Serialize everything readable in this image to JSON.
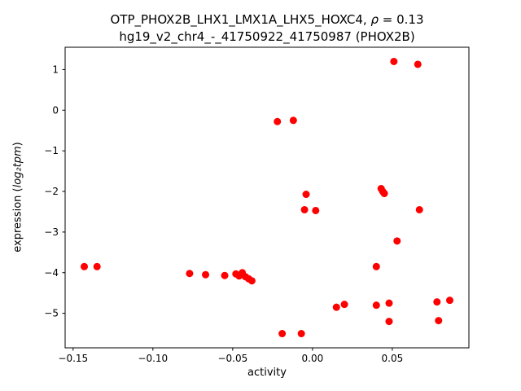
{
  "title": {
    "line1_prefix": "OTP_PHOX2B_LHX1_LMX1A_LHX5_HOXC4, ",
    "line1_rho": "ρ",
    "line1_suffix": " = 0.13",
    "line2": "hg19_v2_chr4_-_41750922_41750987 (PHOX2B)"
  },
  "axes": {
    "xlabel": "activity",
    "ylabel_prefix": "expression (",
    "ylabel_math": "log₂tpm",
    "ylabel_suffix": ")"
  },
  "chart_data": {
    "type": "scatter",
    "title": "OTP_PHOX2B_LHX1_LMX1A_LHX5_HOXC4, ρ = 0.13 / hg19_v2_chr4_-_41750922_41750987 (PHOX2B)",
    "xlabel": "activity",
    "ylabel": "expression (log2 tpm)",
    "marker_color": "#ff0000",
    "marker_radius": 4.5,
    "grid": false,
    "legend": null,
    "xlim": [
      -0.155,
      0.098
    ],
    "ylim": [
      -5.85,
      1.55
    ],
    "x_ticks": {
      "values": [
        -0.15,
        -0.1,
        -0.05,
        0.0,
        0.05
      ],
      "labels": [
        "−0.15",
        "−0.10",
        "−0.05",
        "0.00",
        "0.05"
      ]
    },
    "y_ticks": {
      "values": [
        1,
        0,
        -1,
        -2,
        -3,
        -4,
        -5
      ],
      "labels": [
        "1",
        "0",
        "−1",
        "−2",
        "−3",
        "−4",
        "−5"
      ]
    },
    "points": [
      [
        -0.143,
        -3.85
      ],
      [
        -0.135,
        -3.85
      ],
      [
        -0.077,
        -4.02
      ],
      [
        -0.067,
        -4.05
      ],
      [
        -0.055,
        -4.07
      ],
      [
        -0.048,
        -4.03
      ],
      [
        -0.046,
        -4.08
      ],
      [
        -0.044,
        -4.0
      ],
      [
        -0.042,
        -4.1
      ],
      [
        -0.04,
        -4.15
      ],
      [
        -0.038,
        -4.2
      ],
      [
        -0.022,
        -0.28
      ],
      [
        -0.012,
        -0.25
      ],
      [
        -0.019,
        -5.5
      ],
      [
        -0.007,
        -5.5
      ],
      [
        -0.004,
        -2.07
      ],
      [
        -0.005,
        -2.45
      ],
      [
        0.002,
        -2.47
      ],
      [
        0.015,
        -4.85
      ],
      [
        0.02,
        -4.78
      ],
      [
        0.04,
        -3.85
      ],
      [
        0.043,
        -1.93
      ],
      [
        0.044,
        -2.0
      ],
      [
        0.045,
        -2.05
      ],
      [
        0.04,
        -4.8
      ],
      [
        0.048,
        -4.75
      ],
      [
        0.048,
        -5.2
      ],
      [
        0.051,
        1.2
      ],
      [
        0.053,
        -3.22
      ],
      [
        0.066,
        1.13
      ],
      [
        0.067,
        -2.45
      ],
      [
        0.078,
        -4.72
      ],
      [
        0.086,
        -4.68
      ],
      [
        0.079,
        -5.18
      ]
    ]
  }
}
